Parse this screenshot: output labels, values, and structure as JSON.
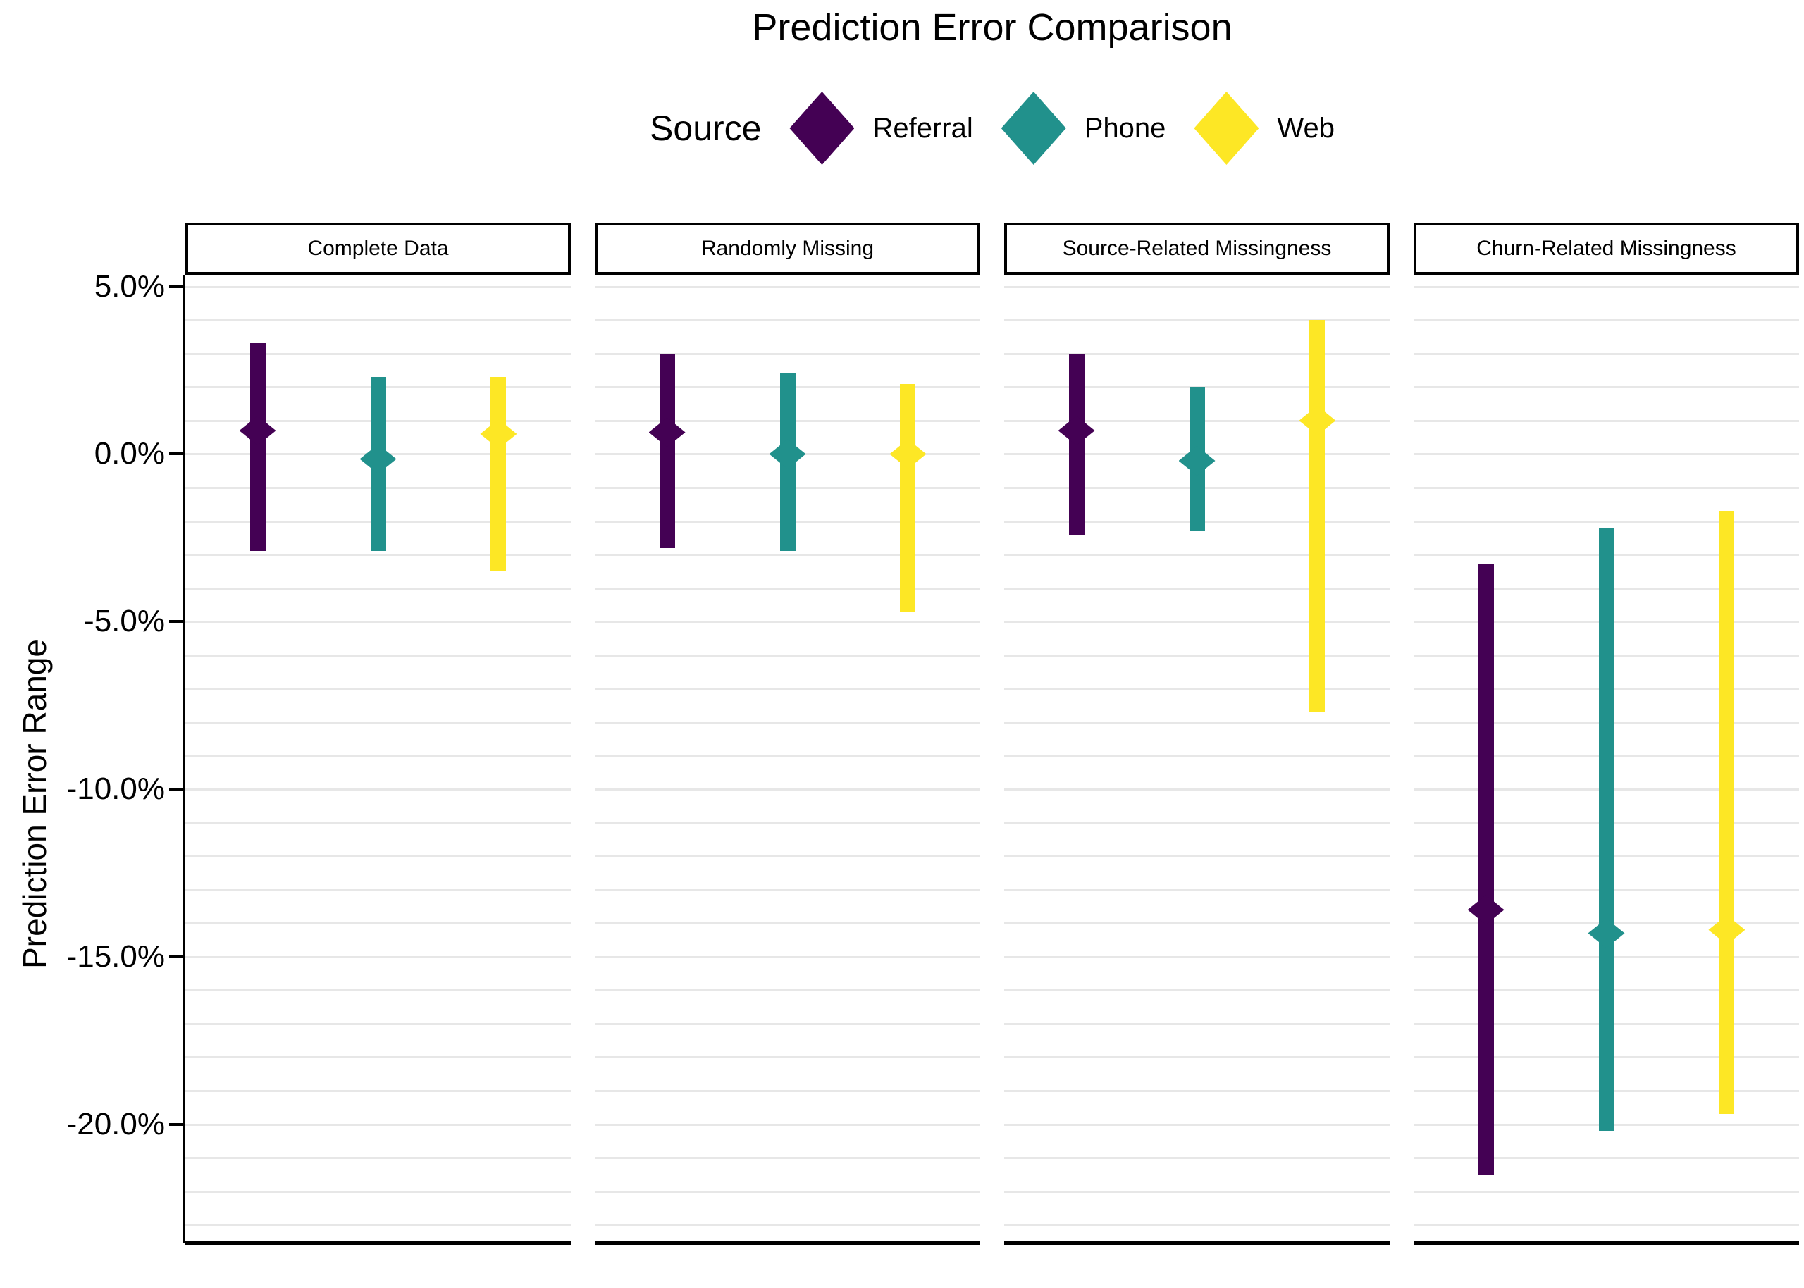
{
  "title": "Prediction Error Comparison",
  "legend": {
    "title": "Source",
    "items": [
      {
        "label": "Referral",
        "color": "#440154"
      },
      {
        "label": "Phone",
        "color": "#21918c"
      },
      {
        "label": "Web",
        "color": "#FDE725"
      }
    ]
  },
  "y_axis": {
    "title": "Prediction Error Range",
    "ticks": [
      {
        "label": "5.0%",
        "value": 5
      },
      {
        "label": "0.0%",
        "value": 0
      },
      {
        "label": "-5.0%",
        "value": -5
      },
      {
        "label": "-10.0%",
        "value": -10
      },
      {
        "label": "-15.0%",
        "value": -15
      },
      {
        "label": "-20.0%",
        "value": -20
      }
    ]
  },
  "chart_data": {
    "type": "pointrange",
    "title": "Prediction Error Comparison",
    "ylabel": "Prediction Error Range",
    "xlabel": "",
    "unit": "percent",
    "ylim": [
      -23.5,
      5.35
    ],
    "gridlines": {
      "orientation": "horizontal",
      "from": 5,
      "to": -23,
      "step": 1
    },
    "legend_position": "top",
    "series_names": [
      "Referral",
      "Phone",
      "Web"
    ],
    "facets": [
      {
        "label": "Complete Data",
        "points": [
          {
            "source": "Referral",
            "center": 0.7,
            "ymin": -2.9,
            "ymax": 3.3
          },
          {
            "source": "Phone",
            "center": -0.15,
            "ymin": -2.9,
            "ymax": 2.3
          },
          {
            "source": "Web",
            "center": 0.6,
            "ymin": -3.5,
            "ymax": 2.3
          }
        ]
      },
      {
        "label": "Randomly Missing",
        "points": [
          {
            "source": "Referral",
            "center": 0.65,
            "ymin": -2.8,
            "ymax": 3.0
          },
          {
            "source": "Phone",
            "center": 0.0,
            "ymin": -2.9,
            "ymax": 2.4
          },
          {
            "source": "Web",
            "center": 0.0,
            "ymin": -4.7,
            "ymax": 2.1
          }
        ]
      },
      {
        "label": "Source-Related Missingness",
        "points": [
          {
            "source": "Referral",
            "center": 0.7,
            "ymin": -2.4,
            "ymax": 3.0
          },
          {
            "source": "Phone",
            "center": -0.2,
            "ymin": -2.3,
            "ymax": 2.0
          },
          {
            "source": "Web",
            "center": 1.0,
            "ymin": -7.7,
            "ymax": 4.0
          }
        ]
      },
      {
        "label": "Churn-Related Missingness",
        "points": [
          {
            "source": "Referral",
            "center": -13.6,
            "ymin": -21.5,
            "ymax": -3.3
          },
          {
            "source": "Phone",
            "center": -14.3,
            "ymin": -20.2,
            "ymax": -2.2
          },
          {
            "source": "Web",
            "center": -14.2,
            "ymin": -19.7,
            "ymax": -1.7
          }
        ]
      }
    ]
  }
}
